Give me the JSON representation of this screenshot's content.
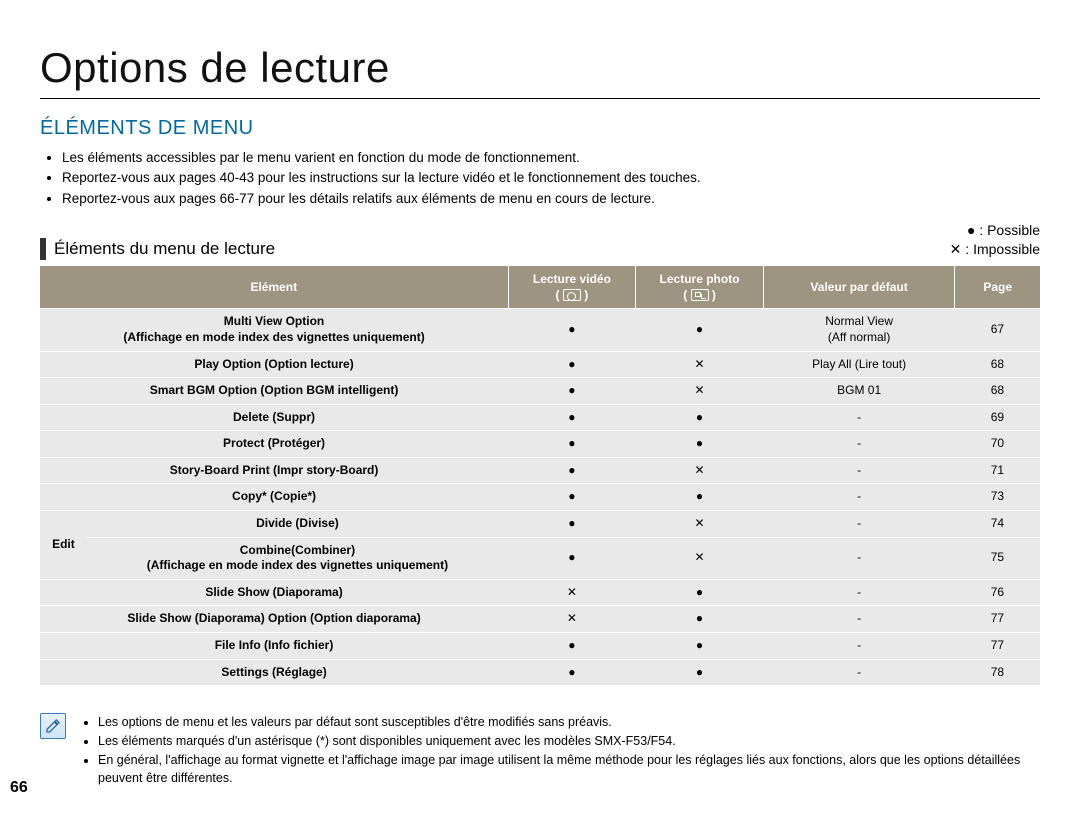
{
  "page_title": "Options de lecture",
  "section_title": "ÉLÉMENTS DE MENU",
  "bullets": [
    "Les éléments accessibles par le menu varient en fonction du mode de fonctionnement.",
    "Reportez-vous aux pages 40-43 pour les instructions sur la lecture vidéo et le fonctionnement des touches.",
    "Reportez-vous aux pages 66-77 pour les détails relatifs aux éléments de menu en cours de lecture."
  ],
  "subheading": "Éléments du menu de lecture",
  "legend": {
    "possible_label": "Possible",
    "impossible_label": "Impossible"
  },
  "symbols": {
    "yes": "●",
    "no": "✕"
  },
  "table": {
    "header_bg": "#9d9582",
    "row_bg": "#e9e9e9",
    "headers": {
      "element": "Elément",
      "video": "Lecture vidéo",
      "photo": "Lecture photo",
      "default": "Valeur par défaut",
      "page": "Page"
    },
    "edit_group_label": "Edit",
    "col_widths": {
      "element": 440,
      "video": 120,
      "photo": 120,
      "default": 160,
      "page": 60
    },
    "rows": [
      {
        "element": "Multi View Option",
        "sub": "(Affichage en mode index des vignettes uniquement)",
        "video": "●",
        "photo": "●",
        "default": "Normal View\n(Aff normal)",
        "page": "67",
        "group": null
      },
      {
        "element": "Play Option (Option lecture)",
        "video": "●",
        "photo": "✕",
        "default": "Play All (Lire tout)",
        "page": "68",
        "group": null
      },
      {
        "element": "Smart BGM Option (Option BGM intelligent)",
        "video": "●",
        "photo": "✕",
        "default": "BGM 01",
        "page": "68",
        "group": null
      },
      {
        "element": "Delete (Suppr)",
        "video": "●",
        "photo": "●",
        "default": "-",
        "page": "69",
        "group": null
      },
      {
        "element": "Protect (Protéger)",
        "video": "●",
        "photo": "●",
        "default": "-",
        "page": "70",
        "group": null
      },
      {
        "element": "Story-Board Print (Impr story-Board)",
        "video": "●",
        "photo": "✕",
        "default": "-",
        "page": "71",
        "group": null
      },
      {
        "element": "Copy* (Copie*)",
        "video": "●",
        "photo": "●",
        "default": "-",
        "page": "73",
        "group": null
      },
      {
        "element": "Divide (Divise)",
        "video": "●",
        "photo": "✕",
        "default": "-",
        "page": "74",
        "group": "edit"
      },
      {
        "element": "Combine(Combiner)",
        "sub": "(Affichage en mode index des vignettes uniquement)",
        "video": "●",
        "photo": "✕",
        "default": "-",
        "page": "75",
        "group": "edit"
      },
      {
        "element": "Slide Show (Diaporama)",
        "video": "✕",
        "photo": "●",
        "default": "-",
        "page": "76",
        "group": null
      },
      {
        "element": "Slide Show (Diaporama) Option (Option diaporama)",
        "video": "✕",
        "photo": "●",
        "default": "-",
        "page": "77",
        "group": null
      },
      {
        "element": "File Info (Info fichier)",
        "video": "●",
        "photo": "●",
        "default": "-",
        "page": "77",
        "group": null
      },
      {
        "element": "Settings (Réglage)",
        "video": "●",
        "photo": "●",
        "default": "-",
        "page": "78",
        "group": null
      }
    ]
  },
  "notes": [
    "Les options de menu et les valeurs par défaut sont susceptibles d'être modifiés sans préavis.",
    "Les éléments marqués d'un astérisque (*) sont disponibles uniquement avec les modèles SMX-F53/F54.",
    "En général, l'affichage au format vignette et l'affichage image par image utilisent la même méthode pour les réglages liés aux fonctions, alors que les options détaillées peuvent être différentes."
  ],
  "page_number": "66"
}
